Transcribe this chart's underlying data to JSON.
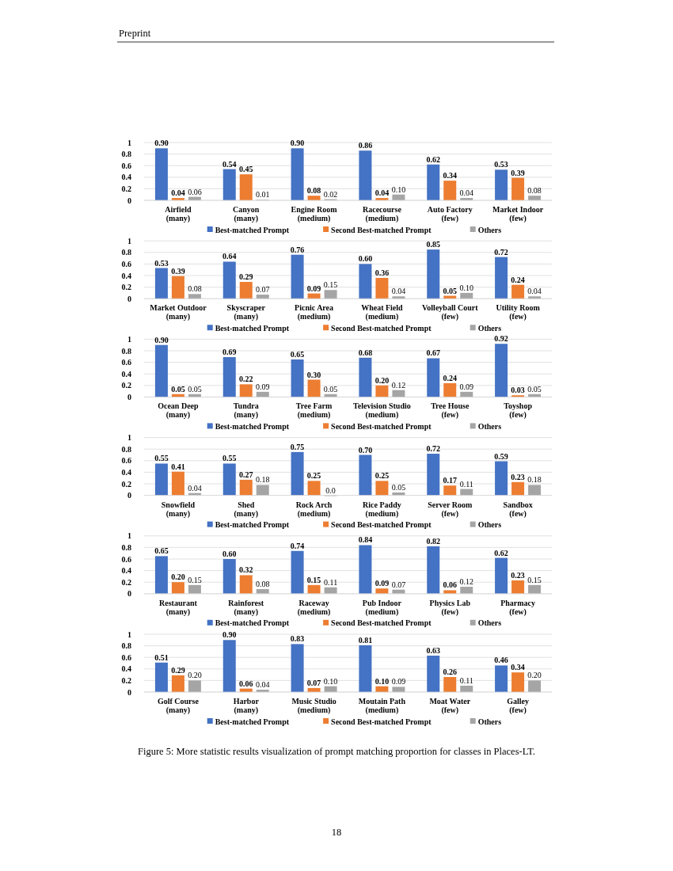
{
  "chart_data": [
    {
      "type": "bar",
      "categories": [
        "Airfield\n(many)",
        "Canyon\n(many)",
        "Engine Room\n(medium)",
        "Racecourse\n(medium)",
        "Auto Factory\n(few)",
        "Market Indoor\n(few)"
      ],
      "ylim": [
        0,
        1
      ],
      "yticks": [
        0,
        0.2,
        0.4,
        0.6,
        0.8,
        1
      ],
      "grid": "y",
      "legend": "bottom",
      "annotations": [
        "Preprint"
      ],
      "series": [
        {
          "name": "Best-matched Prompt",
          "color": "#4472c4",
          "values": [
            0.9,
            0.54,
            0.9,
            0.86,
            0.62,
            0.53
          ],
          "value_labels": [
            "0.90",
            "0.54",
            "0.90",
            "0.86",
            "0.62",
            "0.53"
          ]
        },
        {
          "name": "Second Best-matched Prompt",
          "color": "#ed7d31",
          "values": [
            0.04,
            0.45,
            0.08,
            0.04,
            0.34,
            0.39
          ],
          "value_labels": [
            "0.04",
            "0.45",
            "0.08",
            "0.04",
            "0.34",
            "0.39"
          ]
        },
        {
          "name": "Others",
          "color": "#a5a5a5",
          "values": [
            0.06,
            0.01,
            0.02,
            0.1,
            0.04,
            0.08
          ],
          "value_labels": [
            "0.06",
            "0.01",
            "0.02",
            "0.10",
            "0.04",
            "0.08"
          ]
        }
      ]
    },
    {
      "type": "bar",
      "categories": [
        "Market Outdoor\n(many)",
        "Skyscraper\n(many)",
        "Picnic Area\n(medium)",
        "Wheat Field\n(medium)",
        "Volleyball Court\n(few)",
        "Utility Room\n(few)"
      ],
      "ylim": [
        0,
        1
      ],
      "yticks": [
        0,
        0.2,
        0.4,
        0.6,
        0.8,
        1
      ],
      "grid": "y",
      "legend": "bottom",
      "series": [
        {
          "name": "Best-matched Prompt",
          "color": "#4472c4",
          "values": [
            0.53,
            0.64,
            0.76,
            0.6,
            0.85,
            0.72
          ],
          "value_labels": [
            "0.53",
            "0.64",
            "0.76",
            "0.60",
            "0.85",
            "0.72"
          ]
        },
        {
          "name": "Second Best-matched Prompt",
          "color": "#ed7d31",
          "values": [
            0.39,
            0.29,
            0.09,
            0.36,
            0.05,
            0.24
          ],
          "value_labels": [
            "0.39",
            "0.29",
            "0.09",
            "0.36",
            "0.05",
            "0.24"
          ]
        },
        {
          "name": "Others",
          "color": "#a5a5a5",
          "values": [
            0.08,
            0.07,
            0.15,
            0.04,
            0.1,
            0.04
          ],
          "value_labels": [
            "0.08",
            "0.07",
            "0.15",
            "0.04",
            "0.10",
            "0.04"
          ]
        }
      ]
    },
    {
      "type": "bar",
      "categories": [
        "Ocean Deep\n(many)",
        "Tundra\n(many)",
        "Tree Farm\n(medium)",
        "Television Studio\n(medium)",
        "Tree House\n(few)",
        "Toyshop\n(few)"
      ],
      "ylim": [
        0,
        1
      ],
      "yticks": [
        0,
        0.2,
        0.4,
        0.6,
        0.8,
        1
      ],
      "grid": "y",
      "legend": "bottom",
      "series": [
        {
          "name": "Best-matched Prompt",
          "color": "#4472c4",
          "values": [
            0.9,
            0.69,
            0.65,
            0.68,
            0.67,
            0.92
          ],
          "value_labels": [
            "0.90",
            "0.69",
            "0.65",
            "0.68",
            "0.67",
            "0.92"
          ]
        },
        {
          "name": "Second Best-matched Prompt",
          "color": "#ed7d31",
          "values": [
            0.05,
            0.22,
            0.3,
            0.2,
            0.24,
            0.03
          ],
          "value_labels": [
            "0.05",
            "0.22",
            "0.30",
            "0.20",
            "0.24",
            "0.03"
          ]
        },
        {
          "name": "Others",
          "color": "#a5a5a5",
          "values": [
            0.05,
            0.09,
            0.05,
            0.12,
            0.09,
            0.05
          ],
          "value_labels": [
            "0.05",
            "0.09",
            "0.05",
            "0.12",
            "0.09",
            "0.05"
          ]
        }
      ]
    },
    {
      "type": "bar",
      "categories": [
        "Snowfield\n(many)",
        "Shed\n(many)",
        "Rock Arch\n(medium)",
        "Rice Paddy\n(medium)",
        "Server Room\n(few)",
        "Sandbox\n(few)"
      ],
      "ylim": [
        0,
        1
      ],
      "yticks": [
        0,
        0.2,
        0.4,
        0.6,
        0.8,
        1
      ],
      "grid": "y",
      "legend": "bottom",
      "series": [
        {
          "name": "Best-matched Prompt",
          "color": "#4472c4",
          "values": [
            0.55,
            0.55,
            0.75,
            0.7,
            0.72,
            0.59
          ],
          "value_labels": [
            "0.55",
            "0.55",
            "0.75",
            "0.70",
            "0.72",
            "0.59"
          ]
        },
        {
          "name": "Second Best-matched Prompt",
          "color": "#ed7d31",
          "values": [
            0.41,
            0.27,
            0.25,
            0.25,
            0.17,
            0.23
          ],
          "value_labels": [
            "0.41",
            "0.27",
            "0.25",
            "0.25",
            "0.17",
            "0.23"
          ]
        },
        {
          "name": "Others",
          "color": "#a5a5a5",
          "values": [
            0.04,
            0.18,
            0,
            0.05,
            0.11,
            0.18
          ],
          "value_labels": [
            "0.04",
            "0.18",
            "0.0",
            "0.05",
            "0.11",
            "0.18"
          ]
        }
      ]
    },
    {
      "type": "bar",
      "categories": [
        "Restaurant\n(many)",
        "Rainforest\n(many)",
        "Raceway\n(medium)",
        "Pub Indoor\n(medium)",
        "Physics Lab\n(few)",
        "Pharmacy\n(few)"
      ],
      "ylim": [
        0,
        1
      ],
      "yticks": [
        0,
        0.2,
        0.4,
        0.6,
        0.8,
        1
      ],
      "grid": "y",
      "legend": "bottom",
      "series": [
        {
          "name": "Best-matched Prompt",
          "color": "#4472c4",
          "values": [
            0.65,
            0.6,
            0.74,
            0.84,
            0.82,
            0.62
          ],
          "value_labels": [
            "0.65",
            "0.60",
            "0.74",
            "0.84",
            "0.82",
            "0.62"
          ]
        },
        {
          "name": "Second Best-matched Prompt",
          "color": "#ed7d31",
          "values": [
            0.2,
            0.32,
            0.15,
            0.09,
            0.06,
            0.23
          ],
          "value_labels": [
            "0.20",
            "0.32",
            "0.15",
            "0.09",
            "0.06",
            "0.23"
          ]
        },
        {
          "name": "Others",
          "color": "#a5a5a5",
          "values": [
            0.15,
            0.08,
            0.11,
            0.07,
            0.12,
            0.15
          ],
          "value_labels": [
            "0.15",
            "0.08",
            "0.11",
            "0.07",
            "0.12",
            "0.15"
          ]
        }
      ]
    },
    {
      "type": "bar",
      "categories": [
        "Golf Course\n(many)",
        "Harbor\n(many)",
        "Music Studio\n(medium)",
        "Moutain Path\n(medium)",
        "Moat Water\n(few)",
        "Galley\n(few)"
      ],
      "ylim": [
        0,
        1
      ],
      "yticks": [
        0,
        0.2,
        0.4,
        0.6,
        0.8,
        1
      ],
      "grid": "y",
      "legend": "bottom",
      "annotations": [
        "Figure 5: More statistic results visualization of prompt matching proportion for classes in Places-LT.",
        "18"
      ],
      "series": [
        {
          "name": "Best-matched Prompt",
          "color": "#4472c4",
          "values": [
            0.51,
            0.9,
            0.83,
            0.81,
            0.63,
            0.46
          ],
          "value_labels": [
            "0.51",
            "0.90",
            "0.83",
            "0.81",
            "0.63",
            "0.46"
          ]
        },
        {
          "name": "Second Best-matched Prompt",
          "color": "#ed7d31",
          "values": [
            0.29,
            0.06,
            0.07,
            0.1,
            0.26,
            0.34
          ],
          "value_labels": [
            "0.29",
            "0.06",
            "0.07",
            "0.10",
            "0.26",
            "0.34"
          ]
        },
        {
          "name": "Others",
          "color": "#a5a5a5",
          "values": [
            0.2,
            0.04,
            0.1,
            0.09,
            0.11,
            0.2
          ],
          "value_labels": [
            "0.20",
            "0.04",
            "0.10",
            "0.09",
            "0.11",
            "0.20"
          ]
        }
      ]
    }
  ]
}
